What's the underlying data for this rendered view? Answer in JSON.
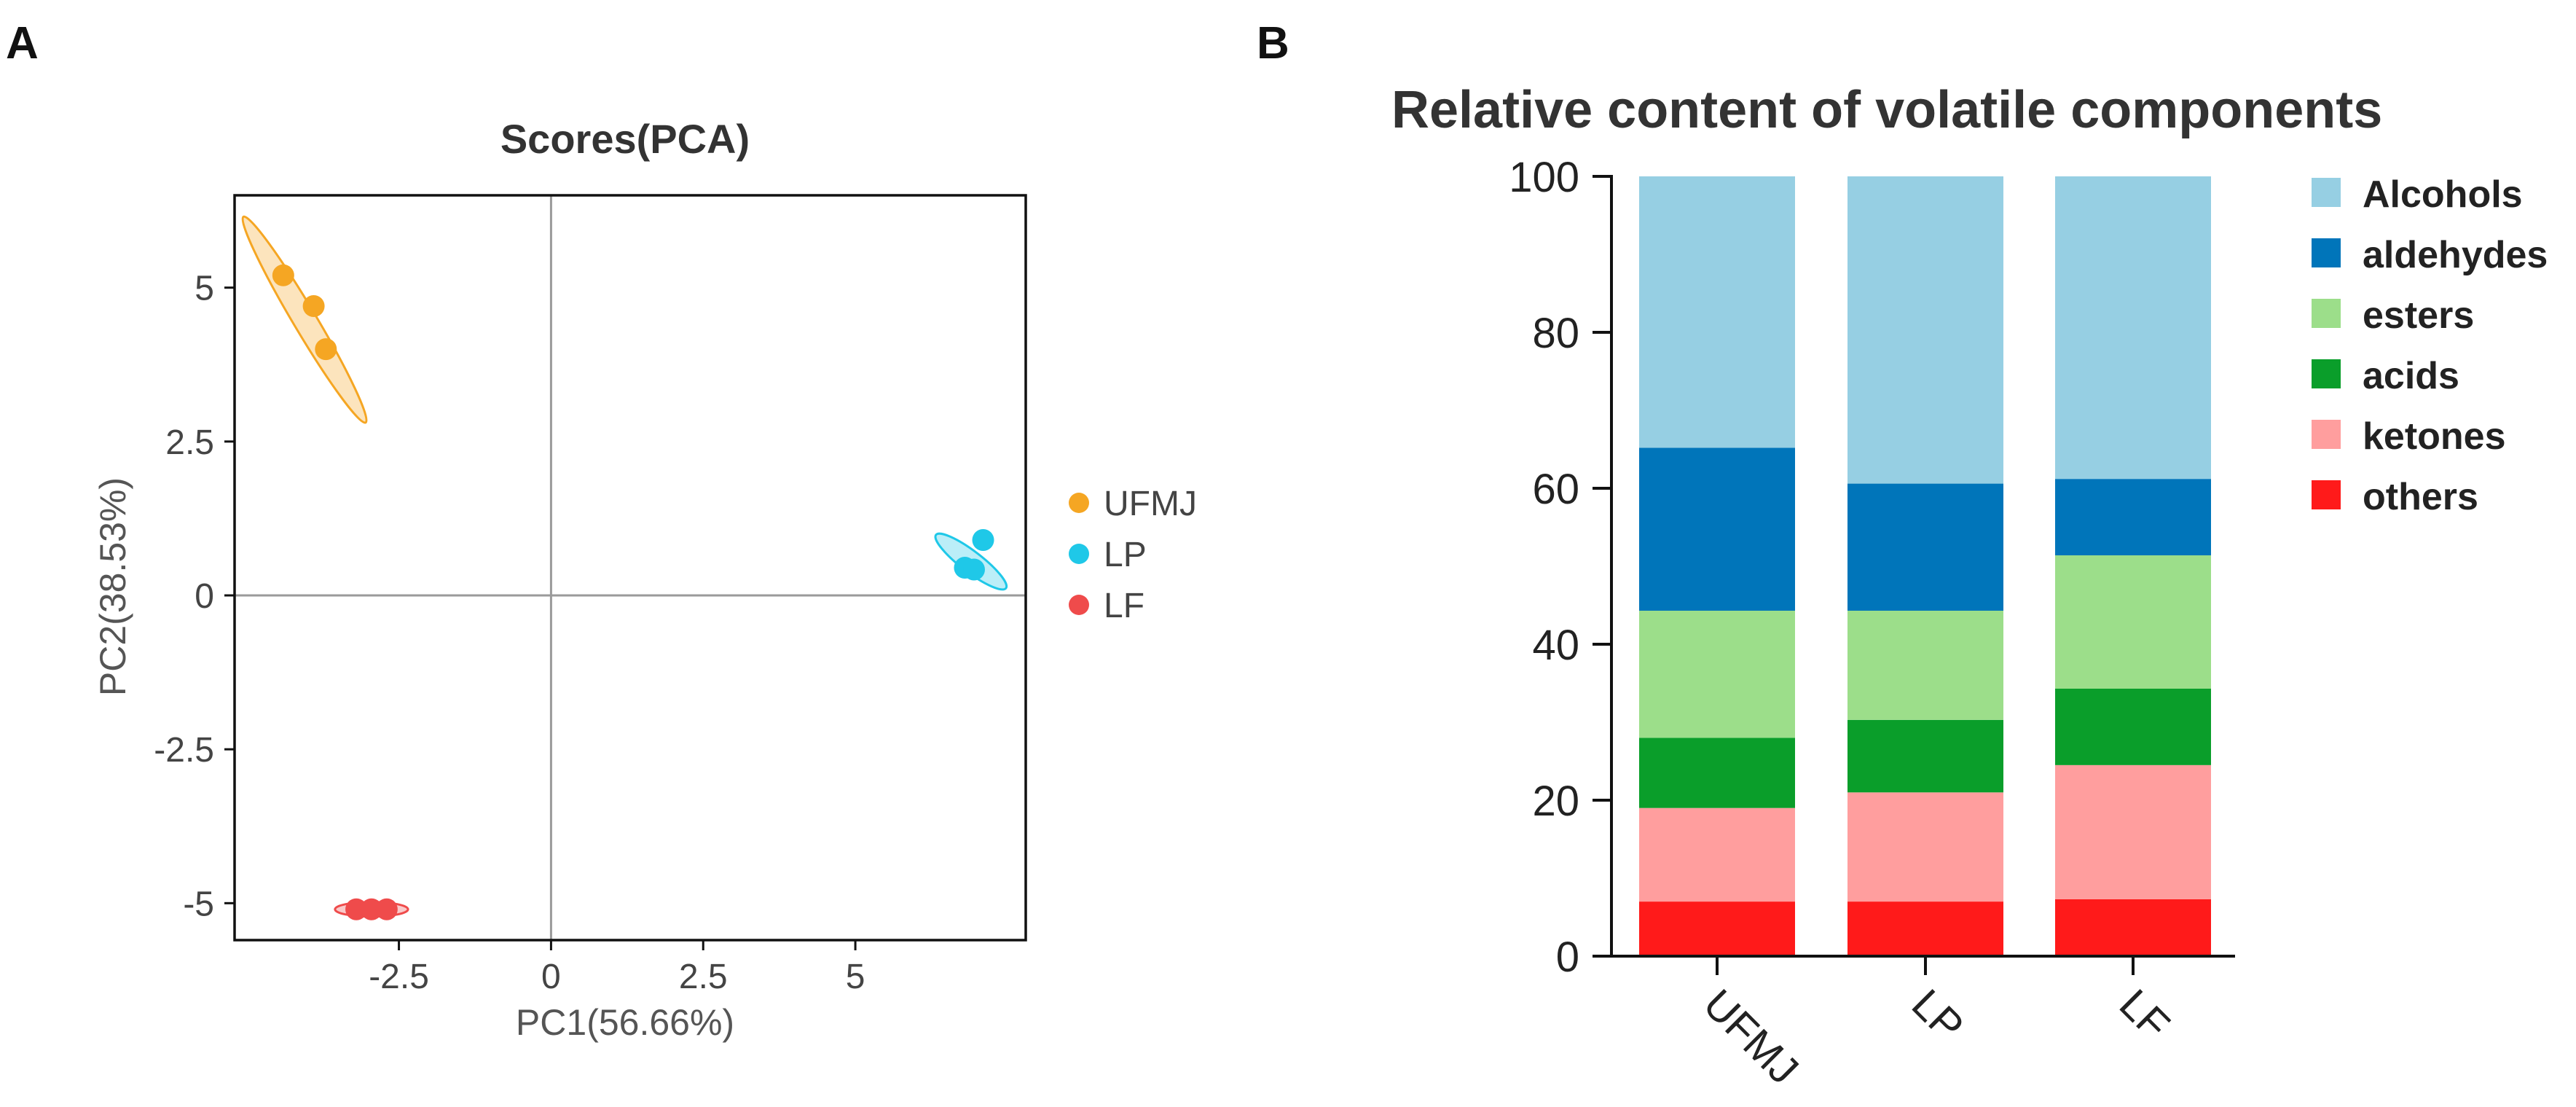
{
  "panels": {
    "a_label": "A",
    "b_label": "B"
  },
  "chart_data": [
    {
      "type": "scatter",
      "title": "Scores(PCA)",
      "xlabel": "PC1(56.66%)",
      "ylabel": "PC2(38.53%)",
      "xlim": [
        -5.2,
        7.8
      ],
      "ylim": [
        -5.6,
        6.5
      ],
      "xticks": [
        -2.5,
        0,
        2.5,
        5
      ],
      "xtick_labels": [
        "-2.5",
        "0",
        "2.5",
        "5"
      ],
      "yticks": [
        -5,
        -2.5,
        0,
        2.5,
        5
      ],
      "ytick_labels": [
        "-5",
        "-2.5",
        "0",
        "2.5",
        "5"
      ],
      "series": [
        {
          "name": "UFMJ",
          "color": "#F5A623",
          "points": [
            [
              -4.4,
              5.2
            ],
            [
              -3.9,
              4.7
            ],
            [
              -3.7,
              4.0
            ]
          ],
          "ellipse": {
            "cx": -4.05,
            "cy": 4.48,
            "rx": 1.95,
            "ry": 0.19,
            "angle_deg": -59
          }
        },
        {
          "name": "LP",
          "color": "#1FC8E8",
          "points": [
            [
              6.8,
              0.45
            ],
            [
              6.95,
              0.42
            ],
            [
              7.1,
              0.9
            ]
          ],
          "ellipse": {
            "cx": 6.9,
            "cy": 0.55,
            "rx": 0.72,
            "ry": 0.17,
            "angle_deg": -37
          }
        },
        {
          "name": "LF",
          "color": "#EF4B4B",
          "points": [
            [
              -3.2,
              -5.1
            ],
            [
              -2.95,
              -5.1
            ],
            [
              -2.7,
              -5.1
            ]
          ],
          "ellipse": {
            "cx": -2.95,
            "cy": -5.1,
            "rx": 0.6,
            "ry": 0.04,
            "angle_deg": 0
          }
        }
      ],
      "legend": [
        "UFMJ",
        "LP",
        "LF"
      ],
      "legend_position": "right"
    },
    {
      "type": "bar",
      "stacked": true,
      "title": "Relative content of volatile components",
      "categories": [
        "UFMJ",
        "LP",
        "LF"
      ],
      "ylim": [
        0,
        100
      ],
      "yticks": [
        0,
        20,
        40,
        60,
        80,
        100
      ],
      "ytick_labels": [
        "0",
        "20",
        "40",
        "60",
        "80",
        "100"
      ],
      "series": [
        {
          "name": "others",
          "color": "#FF1A1A",
          "values": [
            7,
            7,
            7.3
          ]
        },
        {
          "name": "ketones",
          "color": "#FF9E9E",
          "values": [
            12,
            14,
            17.2
          ]
        },
        {
          "name": "acids",
          "color": "#0A9E2A",
          "values": [
            9,
            9.3,
            9.8
          ]
        },
        {
          "name": "esters",
          "color": "#9CDE8A",
          "values": [
            16.3,
            14,
            17.1
          ]
        },
        {
          "name": "aldehydes",
          "color": "#0075BA",
          "values": [
            20.9,
            16.3,
            9.8
          ]
        },
        {
          "name": "Alcohols",
          "color": "#96CFE3",
          "values": [
            34.8,
            39.4,
            38.8
          ]
        }
      ],
      "legend": [
        "Alcohols",
        "aldehydes",
        "esters",
        "acids",
        "ketones",
        "others"
      ],
      "legend_position": "right"
    }
  ]
}
